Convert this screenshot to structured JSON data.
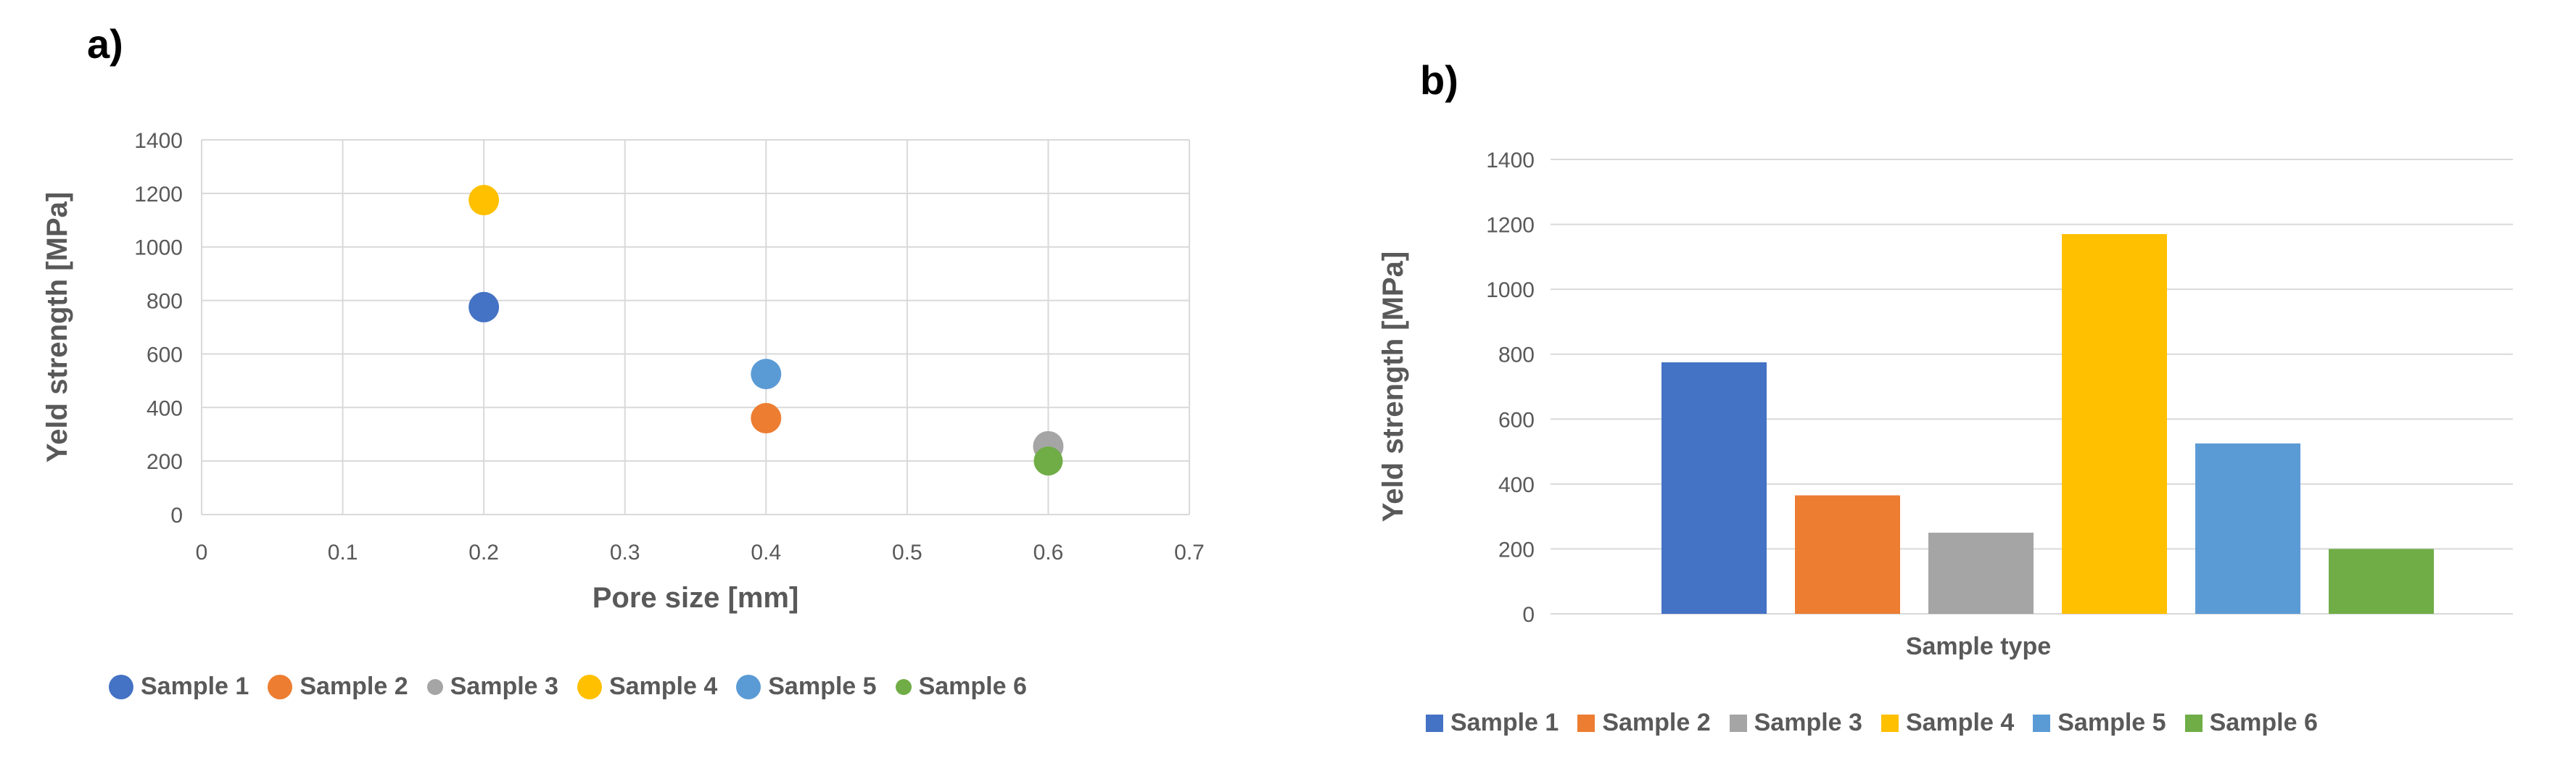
{
  "colors": {
    "sample1": "#4472C4",
    "sample2": "#ED7D31",
    "sample3": "#A5A5A5",
    "sample4": "#FFC000",
    "sample5": "#5B9BD5",
    "sample6": "#70AD47",
    "grid": "#D9D9D9",
    "text": "#595959"
  },
  "chart_data": [
    {
      "type": "scatter",
      "panel_label": "a)",
      "title": "",
      "xlabel": "Pore size  [mm]",
      "ylabel": "Yeld strength [MPa]",
      "xlim": [
        0,
        0.7
      ],
      "ylim": [
        0,
        1400
      ],
      "xticks": [
        "0",
        "0.1",
        "0.2",
        "0.3",
        "0.4",
        "0.5",
        "0.6",
        "0.7"
      ],
      "yticks": [
        "0",
        "200",
        "400",
        "600",
        "800",
        "1000",
        "1200",
        "1400"
      ],
      "grid": true,
      "legend_position": "bottom",
      "series": [
        {
          "name": "Sample 1",
          "x": 0.2,
          "y": 775,
          "color": "#4472C4"
        },
        {
          "name": "Sample 2",
          "x": 0.4,
          "y": 360,
          "color": "#ED7D31"
        },
        {
          "name": "Sample 3",
          "x": 0.6,
          "y": 255,
          "color": "#A5A5A5"
        },
        {
          "name": "Sample 4",
          "x": 0.2,
          "y": 1175,
          "color": "#FFC000"
        },
        {
          "name": "Sample 5",
          "x": 0.4,
          "y": 525,
          "color": "#5B9BD5"
        },
        {
          "name": "Sample 6",
          "x": 0.6,
          "y": 200,
          "color": "#70AD47"
        }
      ]
    },
    {
      "type": "bar",
      "panel_label": "b)",
      "title": "",
      "xlabel": "Sample type",
      "ylabel": "Yeld strength [MPa]",
      "ylim": [
        0,
        1400
      ],
      "yticks": [
        "0",
        "200",
        "400",
        "600",
        "800",
        "1000",
        "1200",
        "1400"
      ],
      "grid": true,
      "legend_position": "bottom",
      "series": [
        {
          "name": "Sample 1",
          "value": 775,
          "color": "#4472C4"
        },
        {
          "name": "Sample 2",
          "value": 365,
          "color": "#ED7D31"
        },
        {
          "name": "Sample 3",
          "value": 250,
          "color": "#A5A5A5"
        },
        {
          "name": "Sample 4",
          "value": 1170,
          "color": "#FFC000"
        },
        {
          "name": "Sample 5",
          "value": 525,
          "color": "#5B9BD5"
        },
        {
          "name": "Sample 6",
          "value": 200,
          "color": "#70AD47"
        }
      ]
    }
  ]
}
